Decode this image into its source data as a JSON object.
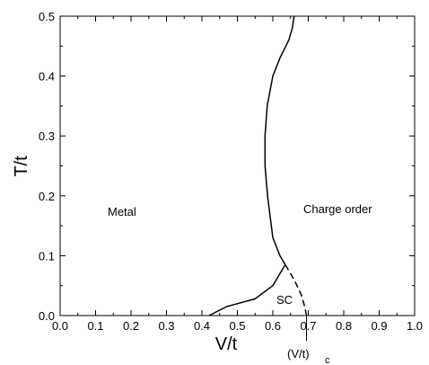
{
  "chart_data": {
    "type": "line",
    "title": "",
    "xlabel": "V/t",
    "ylabel": "T/t",
    "xlim": [
      0.0,
      1.0
    ],
    "ylim": [
      0.0,
      0.5
    ],
    "x_ticks": [
      "0.0",
      "0.1",
      "0.2",
      "0.3",
      "0.4",
      "0.5",
      "0.6",
      "0.7",
      "0.8",
      "0.9",
      "1.0"
    ],
    "y_ticks": [
      "0.0",
      "0.1",
      "0.2",
      "0.3",
      "0.4",
      "0.5"
    ],
    "grid": false,
    "series": [
      {
        "style": "solid",
        "x": [
          0.42,
          0.47,
          0.55,
          0.6,
          0.635,
          0.62,
          0.6,
          0.585,
          0.578,
          0.578,
          0.584,
          0.6,
          0.62,
          0.645,
          0.655,
          0.66
        ],
        "y": [
          0.0,
          0.015,
          0.028,
          0.05,
          0.085,
          0.1,
          0.13,
          0.2,
          0.25,
          0.3,
          0.35,
          0.4,
          0.43,
          0.46,
          0.48,
          0.5
        ]
      },
      {
        "style": "dashed",
        "x": [
          0.635,
          0.66,
          0.68,
          0.69,
          0.695
        ],
        "y": [
          0.085,
          0.06,
          0.035,
          0.015,
          0.0
        ]
      }
    ],
    "annotations": {
      "metal": "Metal",
      "charge_order": "Charge order",
      "sc": "SC",
      "critical_main": "(V/t)",
      "critical_sub": "c",
      "critical_x": 0.695
    }
  }
}
